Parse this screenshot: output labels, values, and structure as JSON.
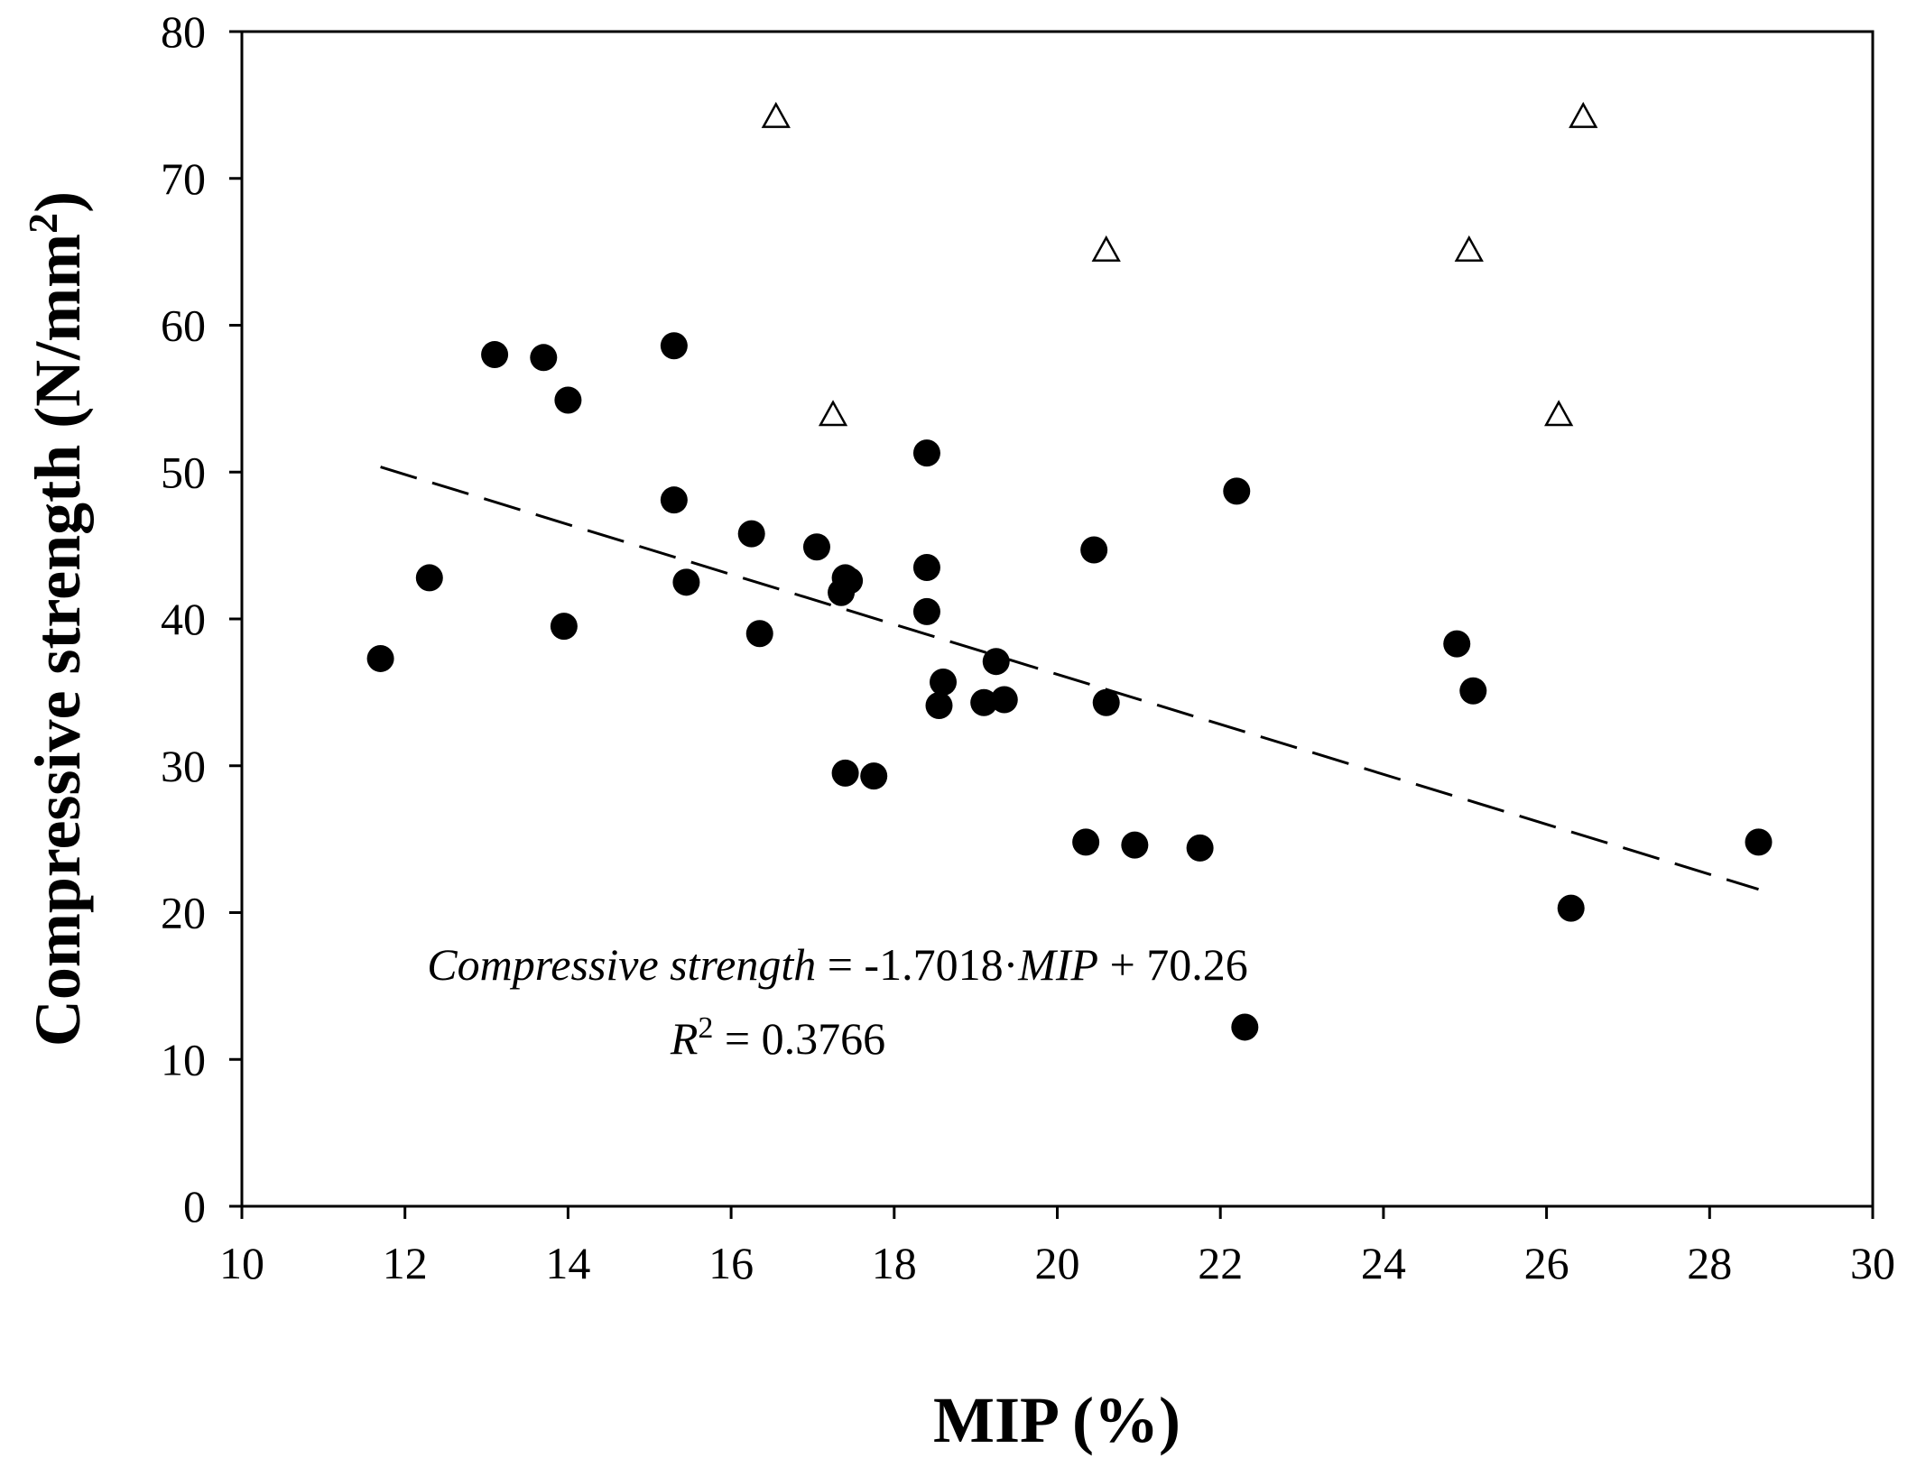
{
  "chart_data": {
    "type": "scatter",
    "xlabel": "MIP (%)",
    "ylabel": "Compressive strength (N/mm2)",
    "ylabel_parts": {
      "main": "Compressive strength (N/mm",
      "sup": "2",
      "close": ")"
    },
    "xlim": [
      10,
      30
    ],
    "ylim": [
      0,
      80
    ],
    "xticks": [
      10,
      12,
      14,
      16,
      18,
      20,
      22,
      24,
      26,
      28,
      30
    ],
    "yticks": [
      0,
      10,
      20,
      30,
      40,
      50,
      60,
      70,
      80
    ],
    "grid": false,
    "series": [
      {
        "name": "filled circles",
        "marker": "circle",
        "color": "#000000",
        "x": [
          11.7,
          12.3,
          13.1,
          13.7,
          13.95,
          14.0,
          15.3,
          15.3,
          15.45,
          16.25,
          16.35,
          17.05,
          17.35,
          17.4,
          17.45,
          17.4,
          17.75,
          18.4,
          18.4,
          18.4,
          18.55,
          18.6,
          19.1,
          19.25,
          19.35,
          20.35,
          20.45,
          20.6,
          20.95,
          21.75,
          22.2,
          22.3,
          24.9,
          25.1,
          26.3,
          28.6
        ],
        "y": [
          37.3,
          42.8,
          58.0,
          57.8,
          39.5,
          54.9,
          58.6,
          48.1,
          42.5,
          45.8,
          39.0,
          44.9,
          41.8,
          42.8,
          42.6,
          29.5,
          29.3,
          51.3,
          43.5,
          40.5,
          34.1,
          35.7,
          34.3,
          37.1,
          34.5,
          24.8,
          44.7,
          34.3,
          24.6,
          24.4,
          48.7,
          12.2,
          38.3,
          35.1,
          20.3,
          24.8
        ]
      },
      {
        "name": "open triangles",
        "marker": "triangle-open",
        "color": "#000000",
        "x": [
          16.55,
          17.25,
          20.6,
          25.05,
          26.15,
          26.45
        ],
        "y": [
          74.2,
          53.9,
          65.1,
          65.1,
          53.9,
          74.2
        ]
      }
    ],
    "trendline": {
      "style": "dashed",
      "slope": -1.7018,
      "intercept": 70.26,
      "x_range": [
        11.7,
        28.6
      ]
    },
    "annotations": {
      "equation": {
        "var1": "Compressive strength",
        "mid": " = -1.7018·",
        "var2": "MIP",
        "end": " + 70.26"
      },
      "r2": {
        "var": "R",
        "sup": "2",
        "rest": " = 0.3766"
      }
    }
  }
}
